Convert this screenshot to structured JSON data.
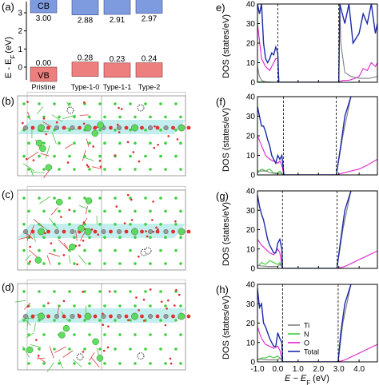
{
  "panel_labels": {
    "a": "(a)",
    "b": "(b)",
    "c": "(c)",
    "d": "(d)",
    "e": "e)",
    "f": "(f)",
    "g": "(g)",
    "h": "(h)"
  },
  "band_edges": {
    "ylabel": "E - E",
    "ylabel_sub": "F",
    "ylabel_unit": "(eV)",
    "y_ticks": [
      "0",
      "1",
      "2",
      "3"
    ],
    "cb_label": "CB",
    "vb_label": "VB",
    "cb_color": "#7f9be0",
    "vb_color": "#ee7f7f",
    "structures": [
      "Pristine",
      "Type-1-0",
      "Type-1-1",
      "Type-2"
    ],
    "cb_values": [
      "3.00",
      "2.88",
      "2.91",
      "2.97"
    ],
    "vb_values": [
      "0.00",
      "0.28",
      "0.23",
      "0.24"
    ]
  },
  "dos_axes": {
    "ylabel": "DOS (states/eV)",
    "y_ticks": [
      "0",
      "10",
      "20",
      "30",
      "40"
    ],
    "x_ticks": [
      "-1.0",
      "0.0",
      "1.0",
      "2.0",
      "3.0",
      "4.0"
    ],
    "xlabel": "E − E",
    "xlabel_sub": "F",
    "xlabel_unit": "(eV)"
  },
  "legend": [
    {
      "name": "Ti",
      "color": "#808080"
    },
    {
      "name": "N",
      "color": "#3ccc3c"
    },
    {
      "name": "O",
      "color": "#e020d0"
    },
    {
      "name": "Total",
      "color": "#1a2aa8"
    }
  ],
  "chart_data": [
    {
      "type": "bar",
      "panel": "a",
      "categories": [
        "Pristine",
        "Type-1-0",
        "Type-1-1",
        "Type-2"
      ],
      "series": [
        {
          "name": "CB",
          "values": [
            3.0,
            2.88,
            2.91,
            2.97
          ]
        },
        {
          "name": "VB",
          "values": [
            0.0,
            0.28,
            0.23,
            0.24
          ]
        }
      ],
      "ylabel": "E - EF (eV)",
      "ylim": [
        -0.5,
        3.6
      ]
    },
    {
      "type": "line",
      "panel": "e",
      "xlim": [
        -1.0,
        4.9
      ],
      "ylim": [
        0,
        40
      ],
      "xlabel": "E − EF (eV)",
      "ylabel": "DOS (states/eV)",
      "vlines": [
        0.0,
        3.0
      ],
      "series": [
        {
          "name": "Ti",
          "x": [
            -1.0,
            -0.9,
            -0.8,
            -0.7,
            -0.6,
            -0.5,
            -0.4,
            -0.3,
            -0.2,
            -0.1,
            0.0,
            0.05,
            3.0,
            3.05,
            3.1,
            3.3,
            3.6,
            4.0,
            4.5,
            4.9
          ],
          "y": [
            8,
            3,
            1,
            0.5,
            0.3,
            0.2,
            0.1,
            0,
            0,
            0,
            0,
            0,
            0,
            40,
            20,
            5,
            3,
            2,
            2,
            3
          ]
        },
        {
          "name": "N",
          "x": [
            -1.0,
            -0.5,
            0.0,
            3.0,
            4.0,
            4.9
          ],
          "y": [
            0.3,
            0.2,
            0,
            0,
            0,
            0
          ]
        },
        {
          "name": "O",
          "x": [
            -1.0,
            -0.8,
            -0.6,
            -0.4,
            -0.3,
            -0.2,
            -0.1,
            0.0,
            0.05,
            3.0,
            3.2,
            3.5,
            3.8,
            4.0,
            4.2,
            4.4,
            4.6,
            4.8,
            4.9
          ],
          "y": [
            30,
            12,
            8,
            6,
            8,
            10,
            12,
            12,
            0,
            0,
            1,
            1,
            2,
            3,
            7,
            6,
            10,
            8,
            10
          ]
        },
        {
          "name": "Total",
          "x": [
            -1.0,
            -0.9,
            -0.8,
            -0.7,
            -0.6,
            -0.5,
            -0.4,
            -0.3,
            -0.2,
            -0.1,
            0.0,
            0.05,
            3.0,
            3.05,
            3.1,
            3.3,
            3.5,
            3.7,
            4.0,
            4.2,
            4.4,
            4.6,
            4.8,
            4.9
          ],
          "y": [
            40,
            35,
            40,
            20,
            12,
            10,
            12,
            15,
            14,
            18,
            15,
            0,
            0,
            40,
            38,
            30,
            40,
            20,
            25,
            35,
            30,
            40,
            25,
            30
          ]
        }
      ]
    },
    {
      "type": "line",
      "panel": "f",
      "xlim": [
        -1.0,
        4.9
      ],
      "ylim": [
        0,
        40
      ],
      "xlabel": "E − EF (eV)",
      "ylabel": "DOS (states/eV)",
      "vlines": [
        0.28,
        2.88
      ],
      "series": [
        {
          "name": "Ti",
          "x": [
            -1.0,
            -0.6,
            -0.3,
            0.0,
            0.1,
            0.2,
            0.3,
            2.88,
            3.2,
            3.6
          ],
          "y": [
            2,
            2,
            1,
            0.5,
            1,
            0.5,
            0,
            0,
            20,
            40
          ]
        },
        {
          "name": "N",
          "x": [
            -1.0,
            -0.8,
            -0.6,
            -0.4,
            -0.2,
            0.0,
            0.1,
            0.2,
            0.3,
            2.88,
            4.9
          ],
          "y": [
            1,
            3,
            2,
            3,
            1,
            1,
            2,
            1,
            0,
            0,
            0
          ]
        },
        {
          "name": "O",
          "x": [
            -1.0,
            -0.8,
            -0.6,
            -0.4,
            -0.2,
            0.0,
            0.1,
            0.2,
            0.3,
            2.88,
            3.2,
            3.6,
            4.0,
            4.4,
            4.9
          ],
          "y": [
            20,
            15,
            10,
            8,
            7,
            6,
            7,
            5,
            0,
            0,
            1,
            2,
            3,
            5,
            8
          ]
        },
        {
          "name": "Total",
          "x": [
            -1.0,
            -0.9,
            -0.8,
            -0.7,
            -0.6,
            -0.5,
            -0.4,
            -0.3,
            -0.2,
            -0.1,
            0.0,
            0.1,
            0.2,
            0.3,
            2.88,
            3.1,
            3.3,
            3.6
          ],
          "y": [
            35,
            30,
            25,
            25,
            22,
            18,
            15,
            10,
            8,
            6,
            10,
            8,
            10,
            0,
            0,
            15,
            30,
            40
          ]
        }
      ]
    },
    {
      "type": "line",
      "panel": "g",
      "xlim": [
        -1.0,
        4.9
      ],
      "ylim": [
        0,
        40
      ],
      "xlabel": "E − EF (eV)",
      "ylabel": "DOS (states/eV)",
      "vlines": [
        0.23,
        2.91
      ],
      "series": [
        {
          "name": "Ti",
          "x": [
            -1.0,
            -0.5,
            0.0,
            0.1,
            0.2,
            0.23,
            2.91,
            3.2,
            3.6
          ],
          "y": [
            1.5,
            1,
            1,
            2,
            1,
            0,
            0,
            20,
            40
          ]
        },
        {
          "name": "N",
          "x": [
            -1.0,
            -0.8,
            -0.6,
            -0.4,
            -0.2,
            0.0,
            0.1,
            0.23,
            2.91,
            4.9
          ],
          "y": [
            1,
            3,
            2,
            4,
            3,
            2,
            3,
            0,
            0,
            0
          ]
        },
        {
          "name": "O",
          "x": [
            -1.0,
            -0.8,
            -0.6,
            -0.4,
            -0.2,
            0.0,
            0.1,
            0.23,
            2.91,
            3.3,
            3.7,
            4.1,
            4.5,
            4.9
          ],
          "y": [
            15,
            12,
            10,
            8,
            7,
            10,
            8,
            0,
            0,
            1,
            3,
            5,
            7,
            9
          ]
        },
        {
          "name": "Total",
          "x": [
            -1.0,
            -0.9,
            -0.8,
            -0.7,
            -0.6,
            -0.5,
            -0.4,
            -0.3,
            -0.2,
            -0.1,
            0.0,
            0.1,
            0.2,
            0.23,
            2.91,
            3.1,
            3.3,
            3.6
          ],
          "y": [
            38,
            32,
            28,
            25,
            20,
            15,
            12,
            10,
            8,
            8,
            13,
            15,
            10,
            0,
            0,
            15,
            30,
            40
          ]
        }
      ]
    },
    {
      "type": "line",
      "panel": "h",
      "xlim": [
        -1.0,
        4.9
      ],
      "ylim": [
        0,
        40
      ],
      "xlabel": "E − EF (eV)",
      "ylabel": "DOS (states/eV)",
      "vlines": [
        0.24,
        2.97
      ],
      "series": [
        {
          "name": "Ti",
          "x": [
            -1.0,
            -0.5,
            0.0,
            0.1,
            0.2,
            0.24,
            2.97,
            3.2,
            3.6
          ],
          "y": [
            1.5,
            1,
            1,
            2,
            1,
            0,
            0,
            20,
            40
          ]
        },
        {
          "name": "N",
          "x": [
            -1.0,
            -0.8,
            -0.6,
            -0.4,
            -0.2,
            0.0,
            0.1,
            0.24,
            2.97,
            4.9
          ],
          "y": [
            1,
            2,
            2,
            3,
            2,
            3,
            2,
            0,
            0,
            0
          ]
        },
        {
          "name": "O",
          "x": [
            -1.0,
            -0.8,
            -0.6,
            -0.4,
            -0.2,
            0.0,
            0.1,
            0.24,
            2.97,
            3.3,
            3.7,
            4.1,
            4.5,
            4.9
          ],
          "y": [
            18,
            12,
            9,
            8,
            7,
            8,
            6,
            0,
            0,
            1,
            3,
            5,
            7,
            9
          ]
        },
        {
          "name": "Total",
          "x": [
            -1.0,
            -0.9,
            -0.8,
            -0.7,
            -0.6,
            -0.5,
            -0.4,
            -0.3,
            -0.2,
            -0.1,
            0.0,
            0.1,
            0.2,
            0.24,
            2.97,
            3.1,
            3.3,
            3.6
          ],
          "y": [
            38,
            28,
            30,
            20,
            18,
            15,
            12,
            10,
            8,
            8,
            15,
            12,
            10,
            0,
            0,
            15,
            30,
            40
          ]
        }
      ]
    }
  ]
}
